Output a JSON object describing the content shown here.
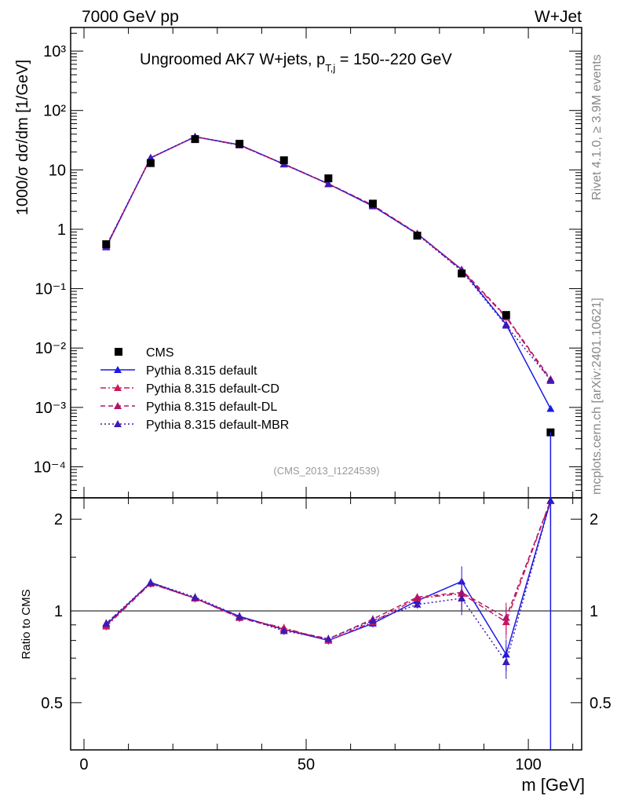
{
  "header": {
    "left": "7000 GeV pp",
    "right": "W+Jet"
  },
  "side_text": {
    "top": "Rivet 4.1.0, ≥ 3.9M events",
    "bottom": "mcplots.cern.ch [arXiv:2401.10621]"
  },
  "chart_data": {
    "type": "line",
    "title": "Ungroomed AK7 W+jets, p",
    "title_sub": "T,j",
    "title_tail": " = 150--220 GeV",
    "analysis_id": "(CMS_2013_I1224539)",
    "ylabel": "1000/σ  dσ/dm [1/GeV]",
    "xlabel": "m [GeV]",
    "ratio_ylabel": "Ratio to CMS",
    "xlim": [
      -3,
      112
    ],
    "ylim": [
      3e-05,
      2500
    ],
    "ratio_ylim": [
      0.35,
      2.35
    ],
    "x_ticks": [
      0,
      50,
      100
    ],
    "ratio_ticks": [
      0.5,
      1,
      2
    ],
    "y_tick_labels": [
      "10⁻⁴",
      "10⁻³",
      "10⁻²",
      "10⁻¹",
      "1",
      "10",
      "10²",
      "10³"
    ],
    "x": [
      5,
      15,
      25,
      35,
      45,
      55,
      65,
      75,
      85,
      95,
      105
    ],
    "data": {
      "name": "CMS",
      "color": "#000000",
      "values": [
        0.56,
        13.0,
        33.0,
        27.5,
        14.5,
        7.2,
        2.7,
        0.78,
        0.18,
        0.036,
        0.00038
      ]
    },
    "series": [
      {
        "name": "Pythia 8.315 default",
        "color": "#1a1ae6",
        "style": "solid",
        "values": [
          0.5,
          16.0,
          36.0,
          26.5,
          12.5,
          5.8,
          2.45,
          0.84,
          0.21,
          0.025,
          0.00095
        ],
        "ratio": [
          0.9,
          1.24,
          1.1,
          0.96,
          0.87,
          0.8,
          0.91,
          1.08,
          1.25,
          0.72,
          2.3
        ]
      },
      {
        "name": "Pythia 8.315 default-CD",
        "color": "#cc1a55",
        "style": "dashdot",
        "values": [
          0.51,
          15.8,
          36.2,
          26.0,
          12.4,
          5.8,
          2.5,
          0.84,
          0.2,
          0.033,
          0.0028
        ],
        "ratio": [
          0.89,
          1.23,
          1.1,
          0.95,
          0.88,
          0.8,
          0.92,
          1.1,
          1.14,
          0.92,
          2.3
        ]
      },
      {
        "name": "Pythia 8.315 default-DL",
        "color": "#b3136b",
        "style": "dashed",
        "values": [
          0.52,
          15.9,
          36.1,
          26.1,
          12.6,
          5.85,
          2.55,
          0.85,
          0.21,
          0.034,
          0.003
        ],
        "ratio": [
          0.91,
          1.23,
          1.1,
          0.95,
          0.87,
          0.81,
          0.94,
          1.11,
          1.15,
          0.95,
          2.3
        ]
      },
      {
        "name": "Pythia 8.315 default-MBR",
        "color": "#3c1ab3",
        "style": "dotted",
        "values": [
          0.52,
          16.0,
          36.3,
          26.3,
          12.5,
          5.8,
          2.5,
          0.82,
          0.2,
          0.024,
          0.0029
        ],
        "ratio": [
          0.91,
          1.24,
          1.11,
          0.96,
          0.86,
          0.81,
          0.93,
          1.05,
          1.1,
          0.68,
          2.3
        ]
      }
    ]
  }
}
